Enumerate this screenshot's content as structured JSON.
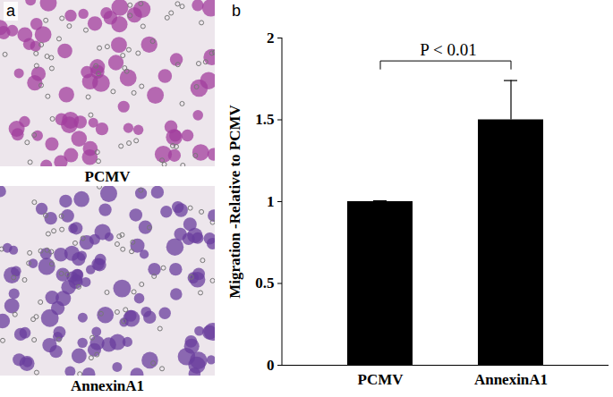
{
  "images": {
    "panel_label": "a",
    "captions": [
      "PCMV",
      "AnnexinA1"
    ]
  },
  "chart_data": {
    "type": "bar",
    "panel_label": "b",
    "categories": [
      "PCMV",
      "AnnexinA1"
    ],
    "values": [
      1.0,
      1.5
    ],
    "errors": [
      0.005,
      0.24
    ],
    "color": "#000000",
    "ylabel": "Migration -Relative to PCMV",
    "ylim": [
      0,
      2
    ],
    "yticks": [
      0,
      {
        "value": 0.5,
        "label": "0.5"
      },
      1,
      {
        "value": 1.5,
        "label": "1.5"
      },
      2
    ],
    "annotation": "P < 0.01",
    "grid": false
  }
}
